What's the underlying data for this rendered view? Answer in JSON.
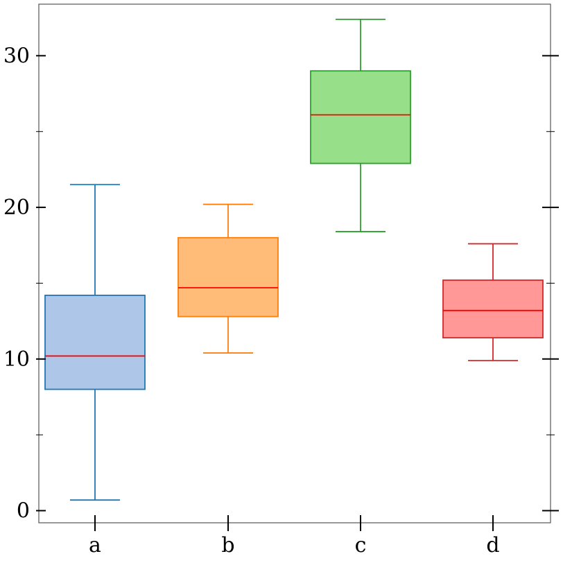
{
  "chart_data": {
    "type": "box",
    "categories": [
      "a",
      "b",
      "c",
      "d"
    ],
    "boxes": [
      {
        "category": "a",
        "whisker_low": 0.7,
        "q1": 8.0,
        "median": 10.2,
        "q3": 14.2,
        "whisker_high": 21.5,
        "fill": "#aec7e8",
        "edge": "#1f77b4"
      },
      {
        "category": "b",
        "whisker_low": 10.4,
        "q1": 12.8,
        "median": 14.7,
        "q3": 18.0,
        "whisker_high": 20.2,
        "fill": "#ffbb78",
        "edge": "#ff7f0e"
      },
      {
        "category": "c",
        "whisker_low": 18.4,
        "q1": 22.9,
        "median": 26.1,
        "q3": 29.0,
        "whisker_high": 32.4,
        "fill": "#98df8a",
        "edge": "#2ca02c"
      },
      {
        "category": "d",
        "whisker_low": 9.9,
        "q1": 11.4,
        "median": 13.2,
        "q3": 15.2,
        "whisker_high": 17.6,
        "fill": "#ff9896",
        "edge": "#d62728"
      }
    ],
    "median_color": "#ff0000",
    "ylim": [
      -0.8,
      33.4
    ],
    "yticks": [
      0,
      10,
      20,
      30
    ],
    "yticks_minor": [
      5,
      15,
      25
    ],
    "title": "",
    "xlabel": "",
    "ylabel": "",
    "grid": false,
    "legend": "none"
  }
}
